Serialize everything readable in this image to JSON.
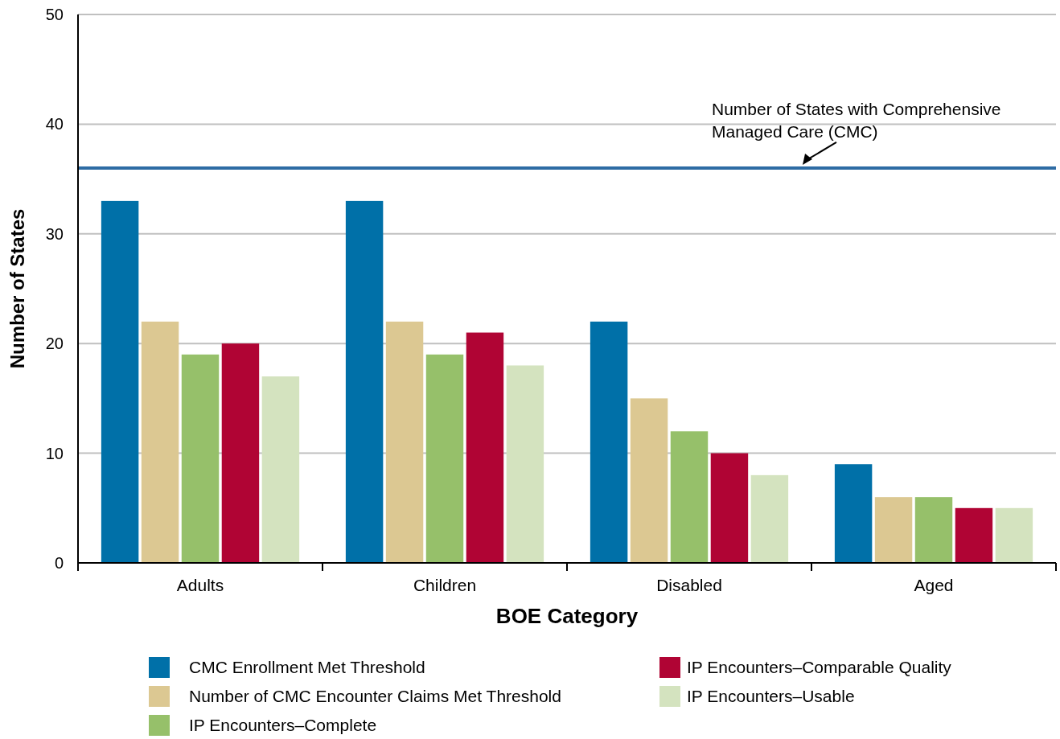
{
  "chart_data": {
    "type": "bar",
    "xlabel": "BOE Category",
    "ylabel": "Number of States",
    "categories": [
      "Adults",
      "Children",
      "Disabled",
      "Aged"
    ],
    "series": [
      {
        "name": "CMC Enrollment Met Threshold",
        "color": "#0070a8",
        "values": [
          33,
          33,
          22,
          9
        ]
      },
      {
        "name": "Number of CMC Encounter Claims Met Threshold",
        "color": "#dcc892",
        "values": [
          22,
          22,
          15,
          6
        ]
      },
      {
        "name": "IP Encounters–Complete",
        "color": "#96c06a",
        "values": [
          19,
          19,
          12,
          6
        ]
      },
      {
        "name": "IP Encounters–Comparable Quality",
        "color": "#b00434",
        "values": [
          20,
          21,
          10,
          5
        ]
      },
      {
        "name": "IP Encounters–Usable",
        "color": "#d4e3bf",
        "values": [
          17,
          18,
          8,
          5
        ]
      }
    ],
    "ylim": [
      0,
      50
    ],
    "yticks": [
      0,
      10,
      20,
      30,
      40,
      50
    ],
    "grid": "y",
    "legend": "bottom",
    "ref_lines": [
      {
        "axis": "y",
        "value": 36,
        "label": "Number of States with Comprehensive Managed Care (CMC)",
        "color": "#2e6ca4"
      }
    ]
  }
}
